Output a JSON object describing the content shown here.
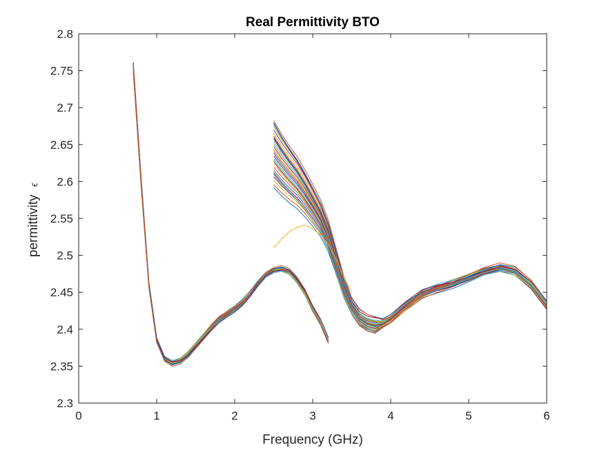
{
  "chart_data": {
    "type": "line",
    "title": "Real Permittivity BTO",
    "xlabel": "Frequency (GHz)",
    "ylabel": "permittivity",
    "ylabel_symbol": "ϵ",
    "xlim": [
      0,
      6
    ],
    "ylim": [
      2.3,
      2.8
    ],
    "xticks": [
      0,
      1,
      2,
      3,
      4,
      5,
      6
    ],
    "xtick_labels": [
      "0",
      "1",
      "2",
      "3",
      "4",
      "5",
      "6"
    ],
    "yticks": [
      2.3,
      2.35,
      2.4,
      2.45,
      2.5,
      2.55,
      2.6,
      2.65,
      2.7,
      2.75,
      2.8
    ],
    "ytick_labels": [
      "2.3",
      "2.35",
      "2.4",
      "2.45",
      "2.5",
      "2.55",
      "2.6",
      "2.65",
      "2.7",
      "2.75",
      "2.8"
    ],
    "grid": false,
    "legend": "none",
    "colors": [
      "#0072BD",
      "#D95319",
      "#EDB120",
      "#7E2F8E",
      "#77AC30",
      "#4DBEEE",
      "#A2142F"
    ],
    "segment_1_typical": {
      "x": [
        0.7,
        0.8,
        0.9,
        1.0,
        1.1,
        1.2,
        1.3,
        1.4,
        1.5,
        1.6,
        1.7,
        1.8,
        1.9,
        2.0,
        2.1,
        2.2,
        2.3,
        2.4,
        2.5,
        2.6,
        2.7,
        2.8,
        2.9,
        3.0,
        3.1,
        3.2
      ],
      "y": [
        2.755,
        2.6,
        2.46,
        2.385,
        2.36,
        2.354,
        2.357,
        2.366,
        2.378,
        2.39,
        2.402,
        2.413,
        2.42,
        2.427,
        2.436,
        2.448,
        2.462,
        2.474,
        2.48,
        2.482,
        2.478,
        2.466,
        2.45,
        2.428,
        2.41,
        2.385
      ]
    },
    "segment_2_typical": {
      "x": [
        2.5,
        2.6,
        2.7,
        2.8,
        2.9,
        3.0,
        3.1,
        3.2,
        3.3,
        3.4,
        3.5,
        3.6,
        3.7,
        3.8,
        3.9,
        4.0,
        4.2,
        4.4,
        4.6,
        4.8,
        5.0,
        5.2,
        5.4,
        5.6,
        5.8,
        6.0
      ],
      "y": [
        2.64,
        2.625,
        2.612,
        2.6,
        2.585,
        2.568,
        2.55,
        2.525,
        2.49,
        2.455,
        2.43,
        2.415,
        2.408,
        2.405,
        2.408,
        2.414,
        2.432,
        2.448,
        2.456,
        2.462,
        2.47,
        2.478,
        2.483,
        2.478,
        2.46,
        2.432
      ]
    },
    "outlier_segment": {
      "x": [
        2.5,
        2.6,
        2.7,
        2.8,
        2.9,
        3.0,
        3.1,
        3.2,
        3.3,
        3.4,
        3.5
      ],
      "y": [
        2.51,
        2.522,
        2.532,
        2.538,
        2.541,
        2.536,
        2.528,
        2.515,
        2.495,
        2.47,
        2.45
      ]
    },
    "series_count": 30
  }
}
